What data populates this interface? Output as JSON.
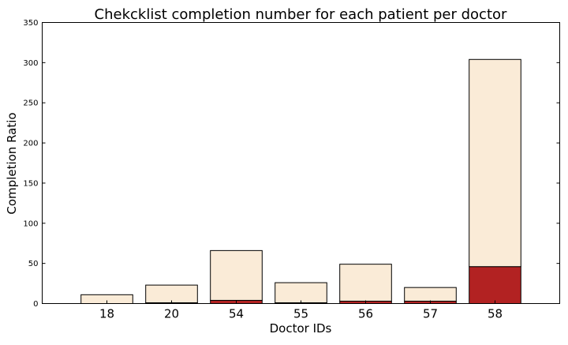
{
  "chart_data": {
    "type": "bar",
    "stacked": true,
    "title": "Chekcklist completion number for each patient per doctor",
    "xlabel": "Doctor IDs",
    "ylabel": "Completion Ratio",
    "categories": [
      "18",
      "20",
      "54",
      "55",
      "56",
      "57",
      "58"
    ],
    "series": [
      {
        "values": [
          0,
          1,
          4,
          1,
          3,
          3,
          46
        ],
        "color": "#b22222"
      },
      {
        "values": [
          11,
          22,
          62,
          25,
          46,
          17,
          258
        ],
        "color": "#faebd7"
      }
    ],
    "ylim": [
      0,
      350
    ],
    "yticks": [
      "0",
      "50",
      "100",
      "150",
      "200",
      "250",
      "300",
      "350"
    ],
    "grid": false,
    "legend": "none"
  }
}
